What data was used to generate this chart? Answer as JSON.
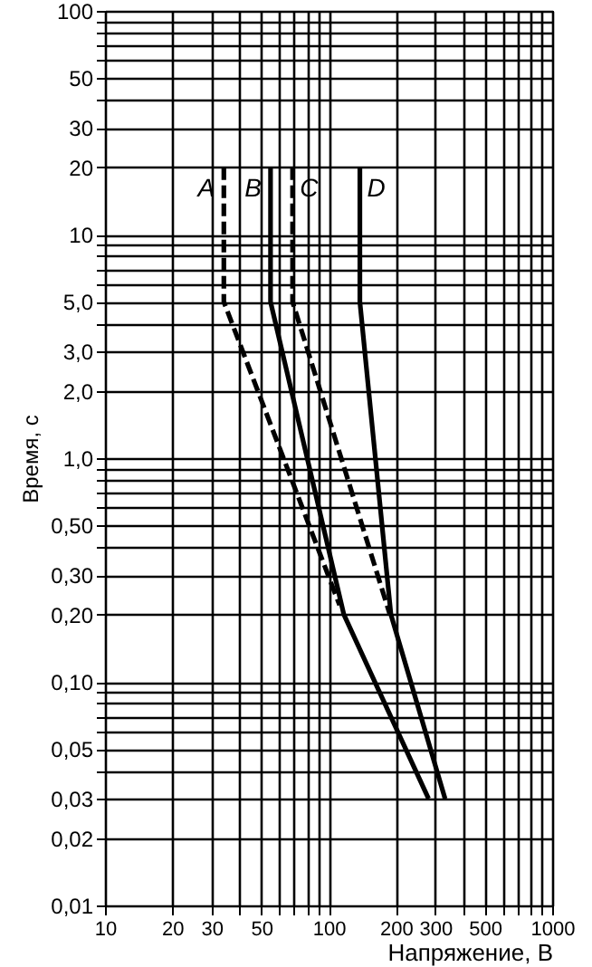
{
  "chart_data": {
    "type": "line",
    "xlabel": "Напряжение, В",
    "ylabel": "Время, с",
    "log": "xy",
    "grid": true,
    "marker": "none",
    "xlim": [
      10,
      1000
    ],
    "xticks": [
      10,
      20,
      30,
      {
        "value": 40,
        "label": null
      },
      50,
      {
        "value": 60,
        "label": null
      },
      {
        "value": 70,
        "label": null
      },
      {
        "value": 80,
        "label": null
      },
      {
        "value": 90,
        "label": null
      },
      100,
      200,
      300,
      {
        "value": 400,
        "label": null
      },
      500,
      {
        "value": 600,
        "label": null
      },
      {
        "value": 700,
        "label": null
      },
      {
        "value": 800,
        "label": null
      },
      {
        "value": 900,
        "label": null
      },
      1000
    ],
    "ylim": [
      0.01,
      100
    ],
    "yticks": [
      {
        "value": 0.01,
        "label": "0,01"
      },
      {
        "value": 0.02,
        "label": "0,02"
      },
      {
        "value": 0.03,
        "label": "0,03"
      },
      {
        "value": 0.04,
        "label": null
      },
      {
        "value": 0.05,
        "label": "0,05"
      },
      {
        "value": 0.06,
        "label": null
      },
      {
        "value": 0.07,
        "label": null
      },
      {
        "value": 0.08,
        "label": null
      },
      {
        "value": 0.09,
        "label": null
      },
      {
        "value": 0.1,
        "label": "0,10"
      },
      {
        "value": 0.2,
        "label": "0,20"
      },
      {
        "value": 0.3,
        "label": "0,30"
      },
      {
        "value": 0.4,
        "label": null
      },
      {
        "value": 0.5,
        "label": "0,50"
      },
      {
        "value": 0.6,
        "label": null
      },
      {
        "value": 0.7,
        "label": null
      },
      {
        "value": 0.8,
        "label": null
      },
      {
        "value": 0.9,
        "label": null
      },
      {
        "value": 1,
        "label": "1,0"
      },
      {
        "value": 2,
        "label": "2,0"
      },
      {
        "value": 3,
        "label": "3,0"
      },
      {
        "value": 4,
        "label": null
      },
      {
        "value": 5,
        "label": "5,0"
      },
      {
        "value": 6,
        "label": null
      },
      {
        "value": 7,
        "label": null
      },
      {
        "value": 8,
        "label": null
      },
      {
        "value": 9,
        "label": null
      },
      10,
      20,
      30,
      {
        "value": 40,
        "label": null
      },
      50,
      {
        "value": 60,
        "label": null
      },
      {
        "value": 70,
        "label": null
      },
      {
        "value": 80,
        "label": null
      },
      {
        "value": 90,
        "label": null
      },
      100
    ],
    "series": [
      {
        "name": "A",
        "color": "#000000",
        "line_style": "dashed",
        "x": [
          34,
          34,
          112
        ],
        "values": [
          20,
          5,
          0.22
        ]
      },
      {
        "name": "B",
        "color": "#000000",
        "line_style": "solid",
        "x": [
          55,
          55,
          117,
          280
        ],
        "values": [
          20,
          5,
          0.2,
          0.03
        ]
      },
      {
        "name": "C",
        "color": "#000000",
        "line_style": "dashed",
        "x": [
          69,
          69,
          188
        ],
        "values": [
          20,
          5,
          0.2
        ]
      },
      {
        "name": "D",
        "color": "#000000",
        "line_style": "solid",
        "x": [
          138,
          138,
          190,
          332
        ],
        "values": [
          20,
          5,
          0.2,
          0.03
        ]
      }
    ]
  }
}
